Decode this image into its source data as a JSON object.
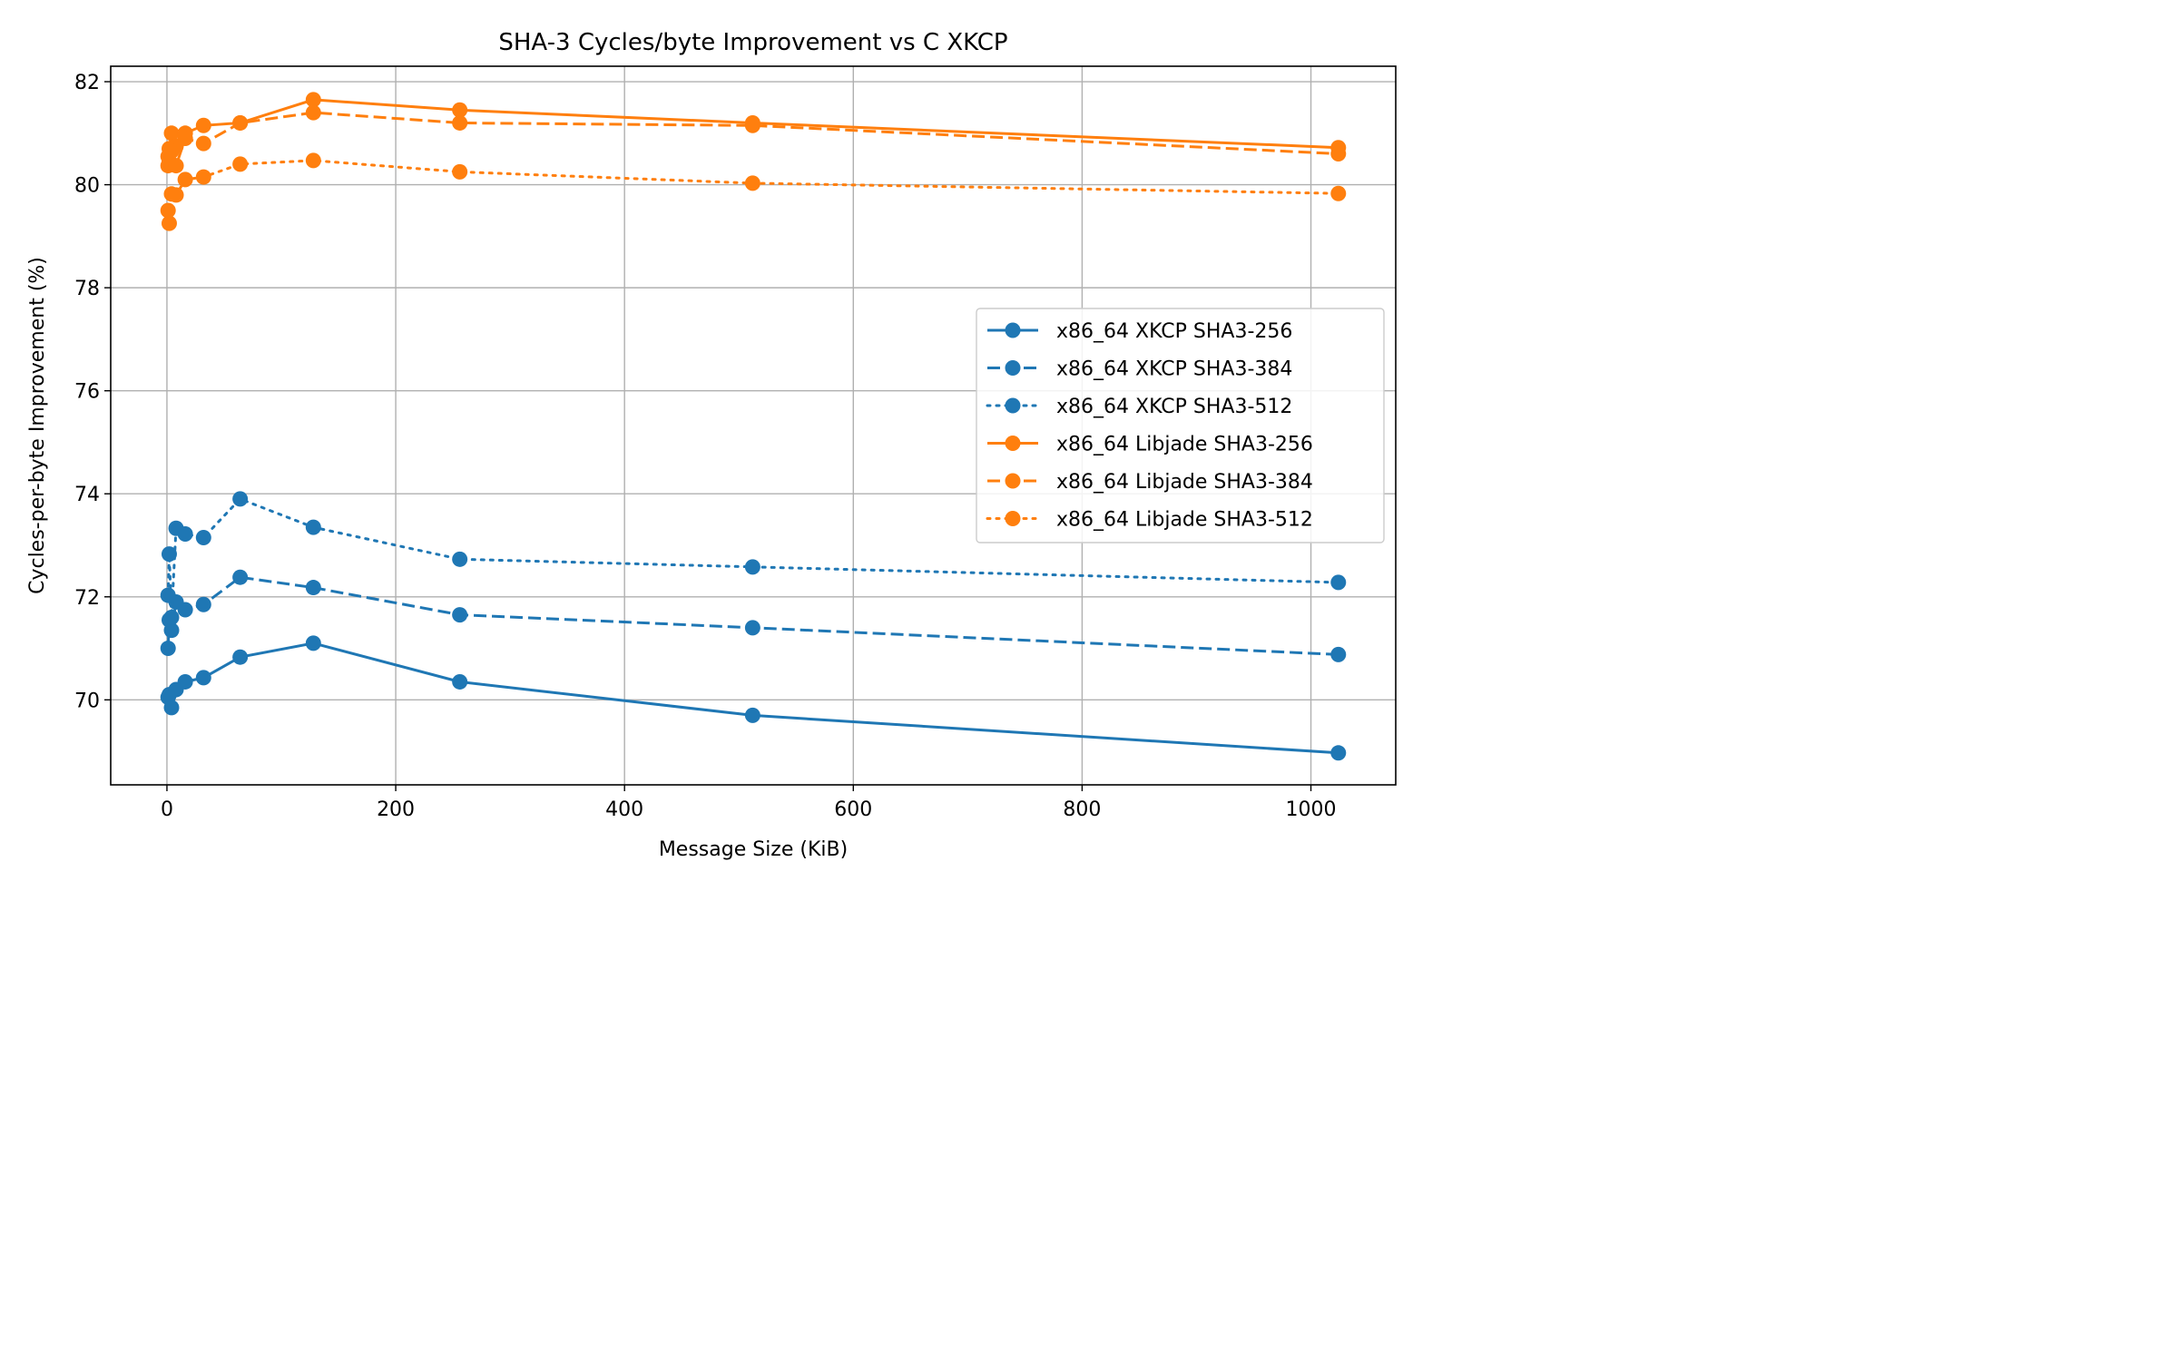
{
  "chart_data": {
    "type": "line",
    "title": "SHA-3 Cycles/byte Improvement vs C XKCP",
    "xlabel": "Message Size (KiB)",
    "ylabel": "Cycles-per-byte Improvement (%)",
    "xlim": [
      -49.15,
      1074.15
    ],
    "ylim": [
      68.35,
      82.3
    ],
    "xticks": [
      0,
      200,
      400,
      600,
      800,
      1000
    ],
    "xtick_labels": [
      "0",
      "200",
      "400",
      "600",
      "800",
      "1000"
    ],
    "yticks": [
      70,
      72,
      74,
      76,
      78,
      80,
      82
    ],
    "ytick_labels": [
      "70",
      "72",
      "74",
      "76",
      "78",
      "80",
      "82"
    ],
    "grid": true,
    "legend_position": "center-right",
    "x": [
      1,
      2,
      4,
      8,
      16,
      32,
      64,
      128,
      256,
      512,
      1024
    ],
    "series": [
      {
        "name": "x86_64 XKCP SHA3-256",
        "color": "#1f77b4",
        "linestyle": "solid",
        "values": [
          70.05,
          70.1,
          69.85,
          70.2,
          70.35,
          70.43,
          70.83,
          71.1,
          70.35,
          69.7,
          68.97
        ]
      },
      {
        "name": "x86_64 XKCP SHA3-384",
        "color": "#1f77b4",
        "linestyle": "dashed",
        "values": [
          71.0,
          71.55,
          71.35,
          71.9,
          71.75,
          71.85,
          72.38,
          72.18,
          71.65,
          71.4,
          70.88
        ]
      },
      {
        "name": "x86_64 XKCP SHA3-512",
        "color": "#1f77b4",
        "linestyle": "dotted",
        "values": [
          72.03,
          72.83,
          71.6,
          73.33,
          73.22,
          73.15,
          73.9,
          73.35,
          72.73,
          72.58,
          72.28
        ]
      },
      {
        "name": "x86_64 Libjade SHA3-256",
        "color": "#ff7f0e",
        "linestyle": "solid",
        "values": [
          80.55,
          80.7,
          81.0,
          80.75,
          81.0,
          81.15,
          81.2,
          81.65,
          81.45,
          81.2,
          80.72
        ]
      },
      {
        "name": "x86_64 Libjade SHA3-384",
        "color": "#ff7f0e",
        "linestyle": "dashed",
        "values": [
          80.37,
          80.45,
          80.65,
          80.37,
          80.9,
          80.8,
          81.2,
          81.4,
          81.2,
          81.15,
          80.6
        ]
      },
      {
        "name": "x86_64 Libjade SHA3-512",
        "color": "#ff7f0e",
        "linestyle": "dotted",
        "values": [
          79.5,
          79.25,
          79.82,
          79.8,
          80.1,
          80.15,
          80.4,
          80.47,
          80.25,
          80.03,
          79.83
        ]
      }
    ]
  }
}
